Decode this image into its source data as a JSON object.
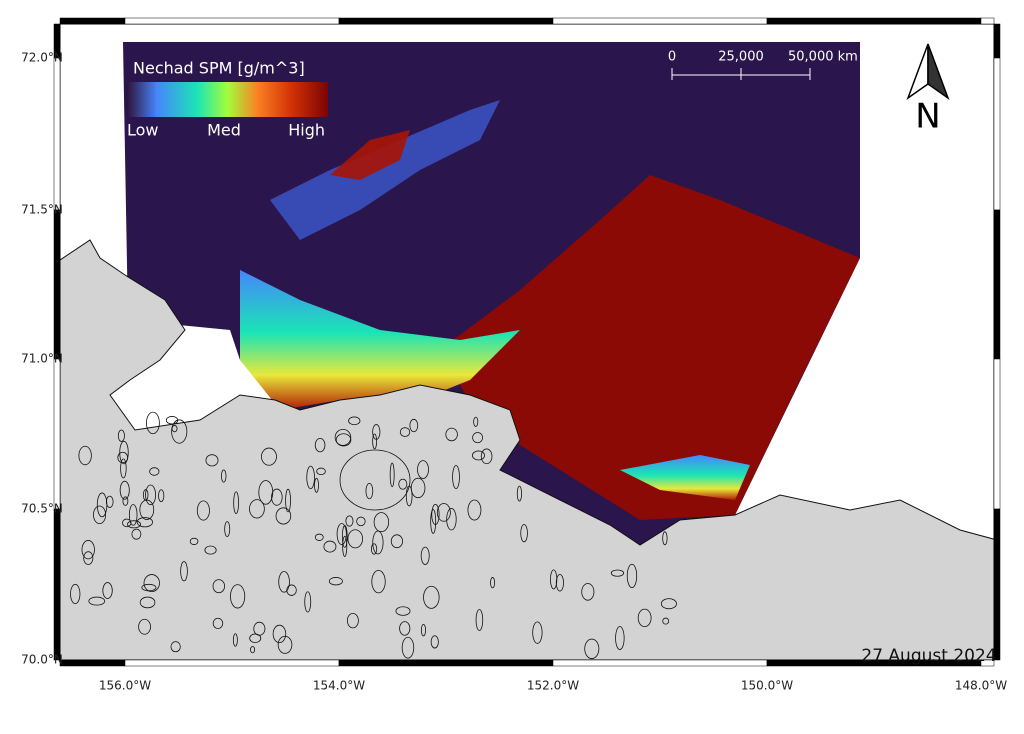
{
  "map": {
    "legend": {
      "title": "Nechad SPM [g/m^3]",
      "labels": [
        "Low",
        "Med",
        "High"
      ]
    },
    "scale_bar": {
      "labels": [
        "0",
        "25,000",
        "50,000 km"
      ]
    },
    "north_arrow": "N",
    "date": "27 August 2024",
    "lat_labels": [
      "72.0°N",
      "71.5°N",
      "71.0°N",
      "70.5°N",
      "70.0°N"
    ],
    "lon_labels": [
      "156.0°W",
      "154.0°W",
      "152.0°W",
      "150.0°W",
      "148.0°W"
    ]
  }
}
